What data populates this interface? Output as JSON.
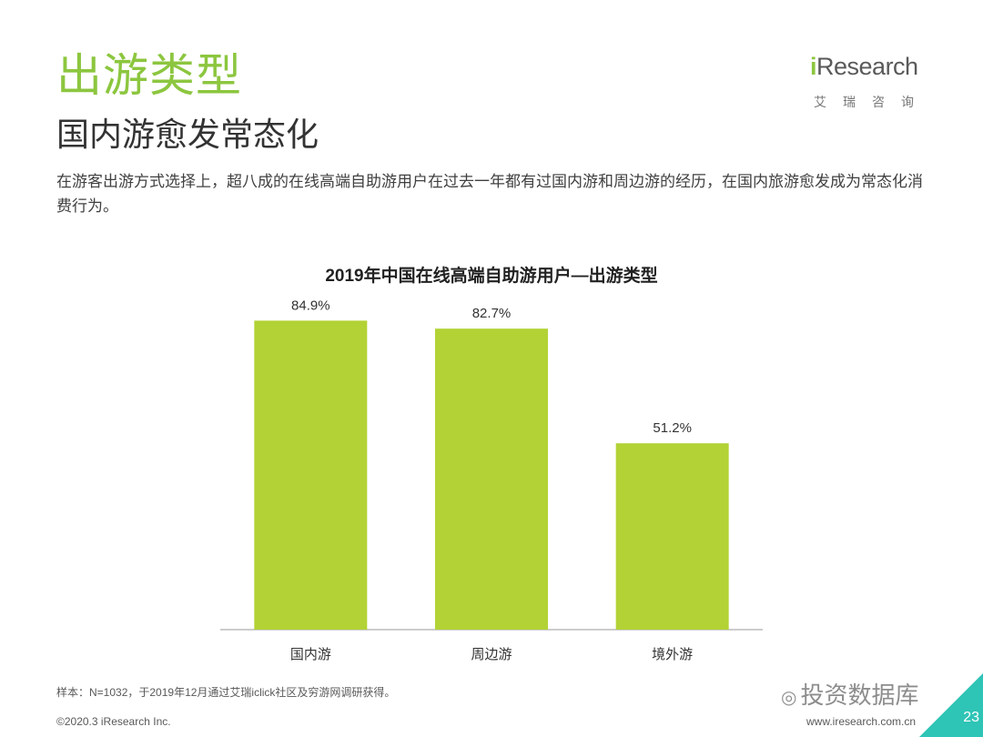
{
  "header": {
    "title": "出游类型",
    "subtitle": "国内游愈发常态化",
    "description": "在游客出游方式选择上，超八成的在线高端自助游用户在过去一年都有过国内游和周边游的经历，在国内旅游愈发成为常态化消费行为。"
  },
  "logo": {
    "brand_i": "i",
    "brand_rest": "Research",
    "cn": "艾瑞咨询"
  },
  "chart_data": {
    "type": "bar",
    "title": "2019年中国在线高端自助游用户—出游类型",
    "categories": [
      "国内游",
      "周边游",
      "境外游"
    ],
    "values": [
      84.9,
      82.7,
      51.2
    ],
    "value_labels": [
      "84.9%",
      "82.7%",
      "51.2%"
    ],
    "ylim": [
      0,
      100
    ],
    "xlabel": "",
    "ylabel": "",
    "bar_color": "#b2d235",
    "grid": false
  },
  "footer": {
    "source": "样本：N=1032，于2019年12月通过艾瑞iclick社区及穷游网调研获得。",
    "copyright": "©2020.3 iResearch Inc.",
    "site": "www.iresearch.com.cn",
    "page": "23",
    "watermark": "投资数据库"
  },
  "colors": {
    "accent": "#8cc63f",
    "corner": "#2ec4b6"
  }
}
